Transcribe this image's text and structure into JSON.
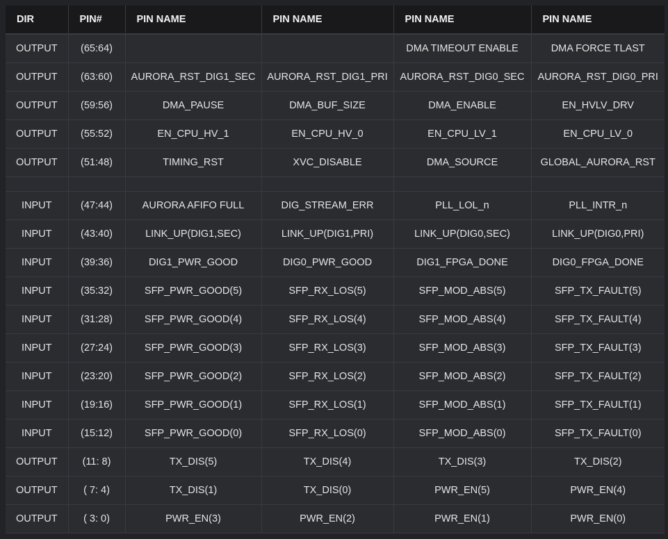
{
  "table": {
    "headers": [
      "DIR",
      "PIN#",
      "PIN NAME",
      "PIN NAME",
      "PIN NAME",
      "PIN NAME"
    ],
    "rows": [
      [
        "OUTPUT",
        "(65:64)",
        "",
        "",
        "DMA TIMEOUT ENABLE",
        "DMA FORCE TLAST"
      ],
      [
        "OUTPUT",
        "(63:60)",
        "AURORA_RST_DIG1_SEC",
        "AURORA_RST_DIG1_PRI",
        "AURORA_RST_DIG0_SEC",
        "AURORA_RST_DIG0_PRI"
      ],
      [
        "OUTPUT",
        "(59:56)",
        "DMA_PAUSE",
        "DMA_BUF_SIZE",
        "DMA_ENABLE",
        "EN_HVLV_DRV"
      ],
      [
        "OUTPUT",
        "(55:52)",
        "EN_CPU_HV_1",
        "EN_CPU_HV_0",
        "EN_CPU_LV_1",
        "EN_CPU_LV_0"
      ],
      [
        "OUTPUT",
        "(51:48)",
        "TIMING_RST",
        "XVC_DISABLE",
        "DMA_SOURCE",
        "GLOBAL_AURORA_RST"
      ],
      [
        "",
        "",
        "",
        "",
        "",
        ""
      ],
      [
        "INPUT",
        "(47:44)",
        "AURORA AFIFO FULL",
        "DIG_STREAM_ERR",
        "PLL_LOL_n",
        "PLL_INTR_n"
      ],
      [
        "INPUT",
        "(43:40)",
        "LINK_UP(DIG1,SEC)",
        "LINK_UP(DIG1,PRI)",
        "LINK_UP(DIG0,SEC)",
        "LINK_UP(DIG0,PRI)"
      ],
      [
        "INPUT",
        "(39:36)",
        "DIG1_PWR_GOOD",
        "DIG0_PWR_GOOD",
        "DIG1_FPGA_DONE",
        "DIG0_FPGA_DONE"
      ],
      [
        "INPUT",
        "(35:32)",
        "SFP_PWR_GOOD(5)",
        "SFP_RX_LOS(5)",
        "SFP_MOD_ABS(5)",
        "SFP_TX_FAULT(5)"
      ],
      [
        "INPUT",
        "(31:28)",
        "SFP_PWR_GOOD(4)",
        "SFP_RX_LOS(4)",
        "SFP_MOD_ABS(4)",
        "SFP_TX_FAULT(4)"
      ],
      [
        "INPUT",
        "(27:24)",
        "SFP_PWR_GOOD(3)",
        "SFP_RX_LOS(3)",
        "SFP_MOD_ABS(3)",
        "SFP_TX_FAULT(3)"
      ],
      [
        "INPUT",
        "(23:20)",
        "SFP_PWR_GOOD(2)",
        "SFP_RX_LOS(2)",
        "SFP_MOD_ABS(2)",
        "SFP_TX_FAULT(2)"
      ],
      [
        "INPUT",
        "(19:16)",
        "SFP_PWR_GOOD(1)",
        "SFP_RX_LOS(1)",
        "SFP_MOD_ABS(1)",
        "SFP_TX_FAULT(1)"
      ],
      [
        "INPUT",
        "(15:12)",
        "SFP_PWR_GOOD(0)",
        "SFP_RX_LOS(0)",
        "SFP_MOD_ABS(0)",
        "SFP_TX_FAULT(0)"
      ],
      [
        "OUTPUT",
        "(11: 8)",
        "TX_DIS(5)",
        "TX_DIS(4)",
        "TX_DIS(3)",
        "TX_DIS(2)"
      ],
      [
        "OUTPUT",
        "( 7: 4)",
        "TX_DIS(1)",
        "TX_DIS(0)",
        "PWR_EN(5)",
        "PWR_EN(4)"
      ],
      [
        "OUTPUT",
        "( 3: 0)",
        "PWR_EN(3)",
        "PWR_EN(2)",
        "PWR_EN(1)",
        "PWR_EN(0)"
      ]
    ]
  },
  "colors": {
    "page_background": "#222327",
    "header_background": "#19191c",
    "cell_background": "#2b2c30",
    "grid_line": "#3a3b40",
    "text": "#e4e4e6"
  }
}
